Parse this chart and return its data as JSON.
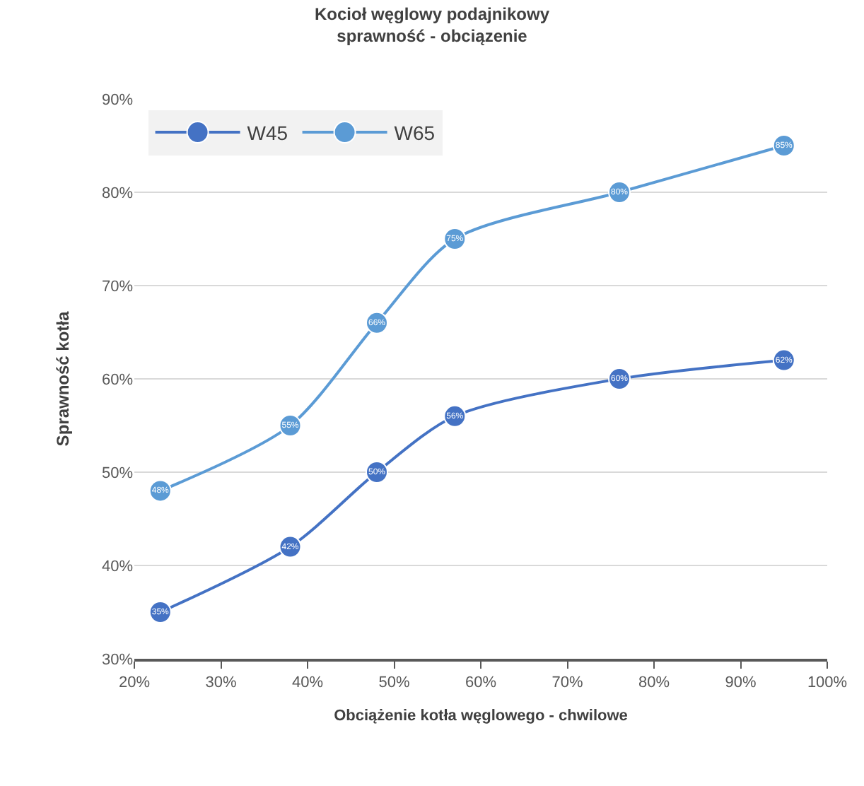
{
  "chart_data": {
    "type": "line",
    "title": "Kocioł węglowy podajnikowy\nsprawność - obciązenie",
    "xlabel": "Obciążenie kotła węglowego - chwilowe",
    "ylabel": "Sprawność kotła",
    "x": [
      23,
      38,
      48,
      57,
      76,
      95
    ],
    "series": [
      {
        "name": "W45",
        "color": "#4472c4",
        "values": [
          35,
          42,
          50,
          56,
          60,
          62
        ],
        "value_labels": [
          "35%",
          "42%",
          "50%",
          "56%",
          "60%",
          "62%"
        ]
      },
      {
        "name": "W65",
        "color": "#5b9bd5",
        "values": [
          48,
          55,
          66,
          75,
          80,
          85
        ],
        "value_labels": [
          "48%",
          "55%",
          "66%",
          "75%",
          "80%",
          "85%"
        ]
      }
    ],
    "xlim": [
      20,
      100
    ],
    "xticks": [
      {
        "value": 20,
        "label": "20%"
      },
      {
        "value": 30,
        "label": "30%"
      },
      {
        "value": 40,
        "label": "40%"
      },
      {
        "value": 50,
        "label": "50%"
      },
      {
        "value": 60,
        "label": "60%"
      },
      {
        "value": 70,
        "label": "70%"
      },
      {
        "value": 80,
        "label": "80%"
      },
      {
        "value": 90,
        "label": "90%"
      },
      {
        "value": 100,
        "label": "100%"
      }
    ],
    "ylim": [
      30,
      90
    ],
    "yticks": [
      {
        "value": 30,
        "label": "30%"
      },
      {
        "value": 40,
        "label": "40%"
      },
      {
        "value": 50,
        "label": "50%"
      },
      {
        "value": 60,
        "label": "60%"
      },
      {
        "value": 70,
        "label": "70%"
      },
      {
        "value": 80,
        "label": "80%"
      },
      {
        "value": 90,
        "label": "90%"
      }
    ],
    "grid": "y",
    "legend": "top left",
    "marker": "circle",
    "line_style": "solid"
  }
}
